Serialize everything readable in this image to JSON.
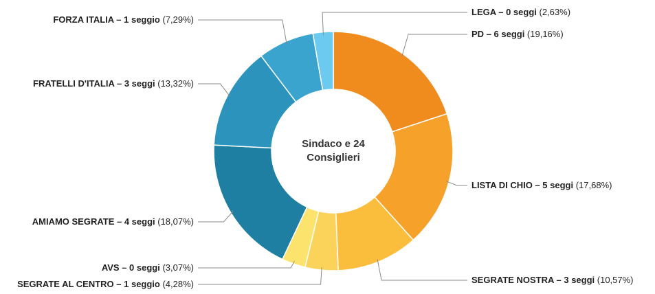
{
  "chart_data": {
    "type": "pie",
    "variant": "donut",
    "center_label": [
      "Sindaco e 24",
      "Consiglieri"
    ],
    "slices": [
      {
        "name": "PD",
        "seats_label": "6 seggi",
        "value": 19.16,
        "pct_label": "(19,16%)",
        "color": "#f08c1e"
      },
      {
        "name": "LISTA DI CHIO",
        "seats_label": "5 seggi",
        "value": 17.68,
        "pct_label": "(17,68%)",
        "color": "#f6a12a"
      },
      {
        "name": "SEGRATE NOSTRA",
        "seats_label": "3 seggi",
        "value": 10.57,
        "pct_label": "(10,57%)",
        "color": "#fbbd3c"
      },
      {
        "name": "SEGRATE AL CENTRO",
        "seats_label": "1 seggio",
        "value": 4.28,
        "pct_label": "(4,28%)",
        "color": "#fcd35a"
      },
      {
        "name": "AVS",
        "seats_label": "0 seggi",
        "value": 3.07,
        "pct_label": "(3,07%)",
        "color": "#fbe36e"
      },
      {
        "name": "AMIAMO SEGRATE",
        "seats_label": "4 seggi",
        "value": 18.07,
        "pct_label": "(18,07%)",
        "color": "#1e7fa3"
      },
      {
        "name": "FRATELLI D'ITALIA",
        "seats_label": "3 seggi",
        "value": 13.32,
        "pct_label": "(13,32%)",
        "color": "#2b93bc"
      },
      {
        "name": "FORZA ITALIA",
        "seats_label": "1 seggio",
        "value": 7.29,
        "pct_label": "(7,29%)",
        "color": "#3aa4cf"
      },
      {
        "name": "LEGA",
        "seats_label": "0 seggi",
        "value": 2.63,
        "pct_label": "(2,63%)",
        "color": "#6ccaf0"
      }
    ],
    "legend": "none"
  }
}
